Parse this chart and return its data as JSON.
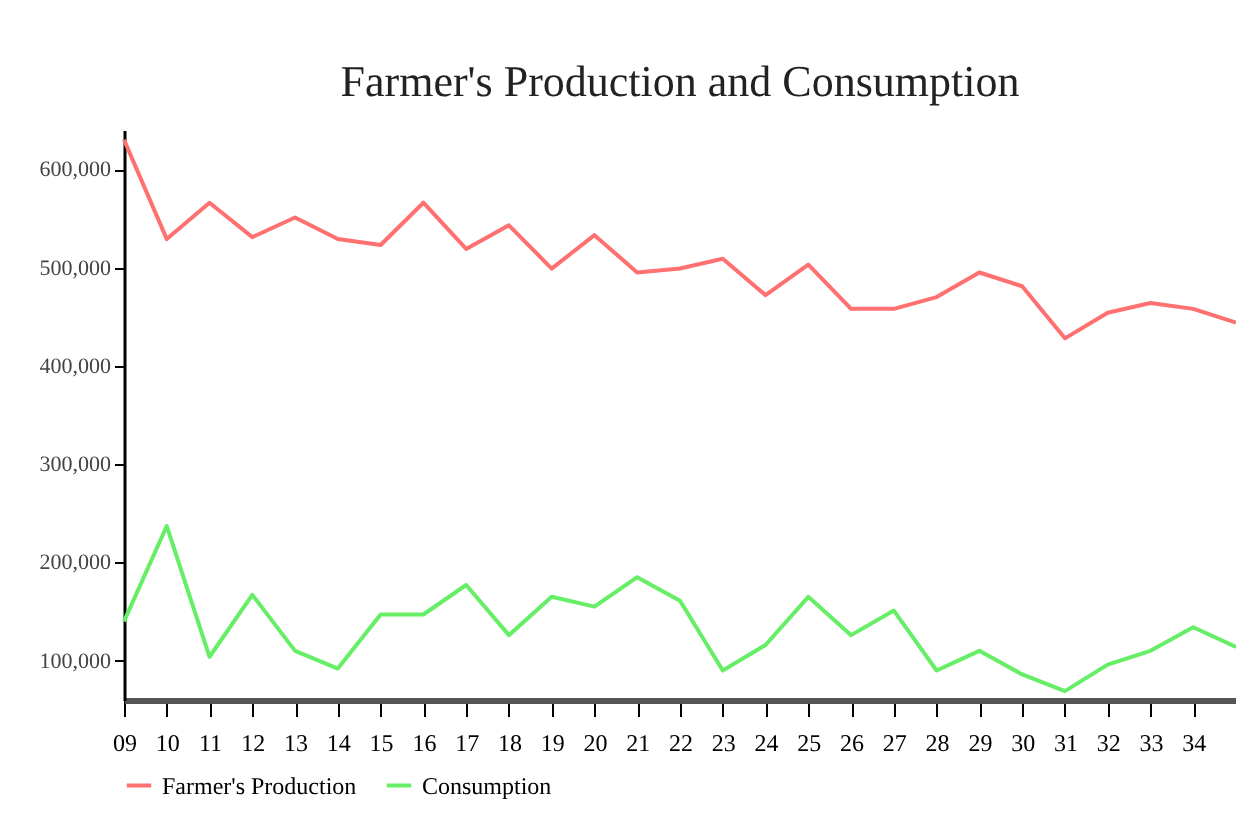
{
  "chart_data": {
    "type": "line",
    "title": "Farmer's Production and Consumption",
    "categories": [
      "09",
      "10",
      "11",
      "12",
      "13",
      "14",
      "15",
      "16",
      "17",
      "18",
      "19",
      "20",
      "21",
      "22",
      "23",
      "24",
      "25",
      "26",
      "27",
      "28",
      "29",
      "30",
      "31",
      "32",
      "33",
      "34",
      null
    ],
    "series": [
      {
        "name": "Farmer's Production",
        "color": "#ff7070",
        "values": [
          630000,
          529000,
          566000,
          531000,
          551000,
          529000,
          523000,
          566000,
          519000,
          543000,
          499000,
          533000,
          495000,
          499000,
          509000,
          472000,
          503000,
          458000,
          458000,
          470000,
          495000,
          481000,
          428000,
          454000,
          464000,
          458000,
          444000
        ]
      },
      {
        "name": "Consumption",
        "color": "#66ee66",
        "values": [
          140000,
          237000,
          104000,
          167000,
          110000,
          92000,
          147000,
          147000,
          177000,
          126000,
          165000,
          155000,
          185000,
          161000,
          90000,
          116000,
          165000,
          126000,
          151000,
          90000,
          110000,
          86000,
          69000,
          96000,
          110000,
          134000,
          114000
        ]
      }
    ],
    "ylim": [
      60000,
      640000
    ],
    "yticks": [
      {
        "value": 100000,
        "label": "100,000"
      },
      {
        "value": 200000,
        "label": "200,000"
      },
      {
        "value": 300000,
        "label": "300,000"
      },
      {
        "value": 400000,
        "label": "400,000"
      },
      {
        "value": 500000,
        "label": "500,000"
      },
      {
        "value": 600000,
        "label": "600,000"
      }
    ],
    "grid": false,
    "legend": "bottom",
    "marker": "none",
    "line_style": "solid"
  }
}
